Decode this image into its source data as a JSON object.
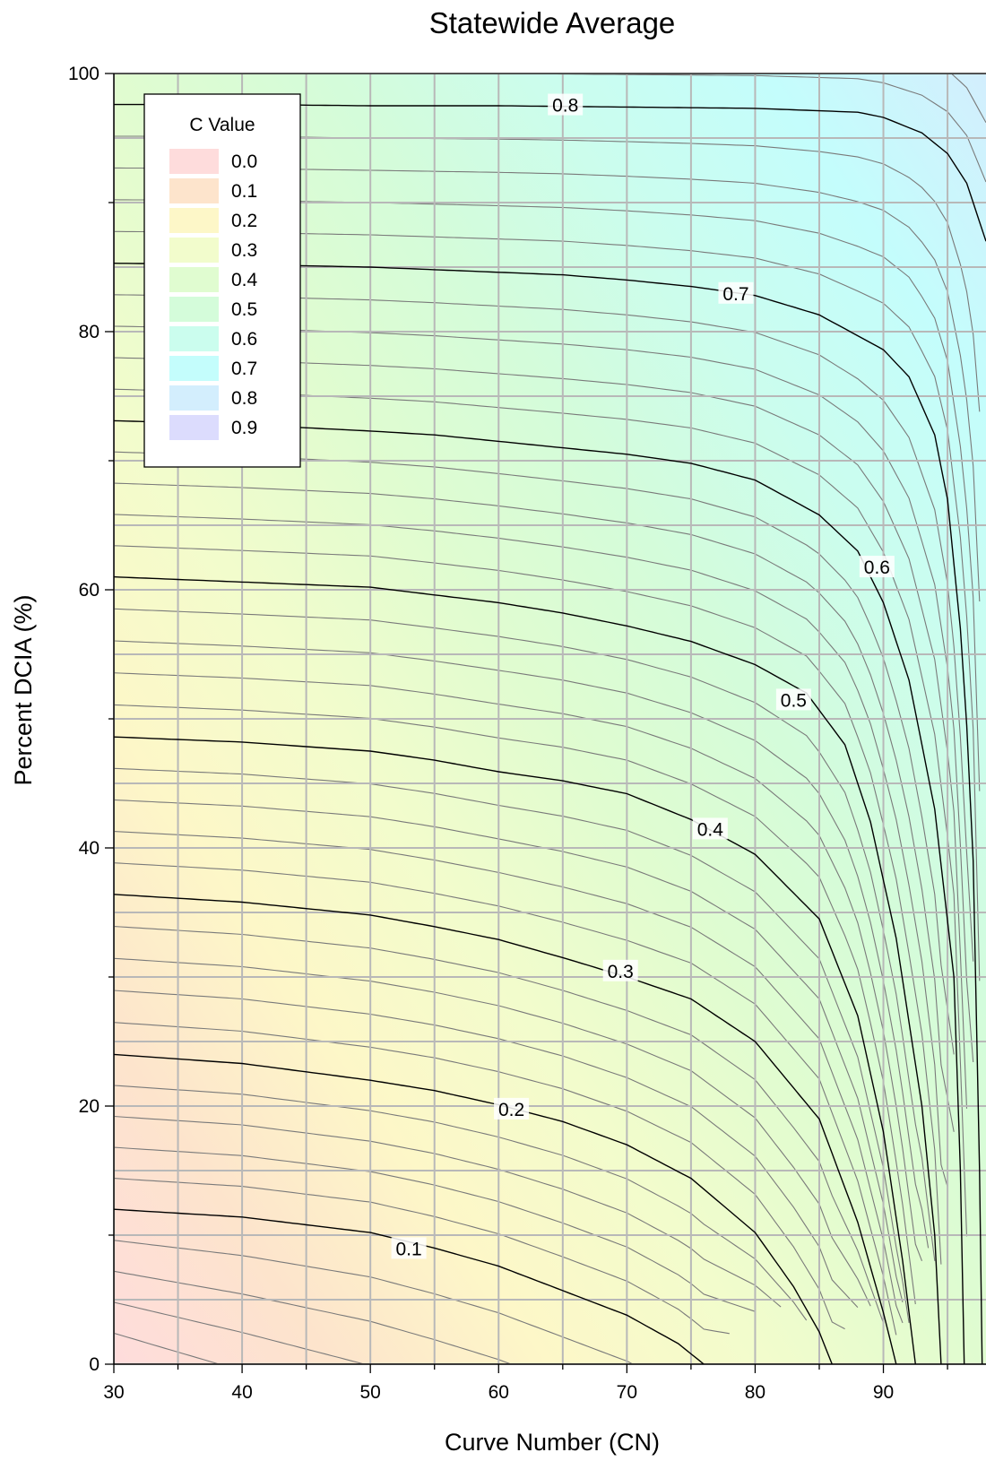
{
  "chart_data": {
    "type": "contour",
    "title": "Statewide Average",
    "xlabel": "Curve Number (CN)",
    "ylabel": "Percent DCIA (%)",
    "xlim": [
      30,
      98
    ],
    "ylim": [
      0,
      100
    ],
    "x_ticks": [
      30,
      40,
      50,
      60,
      70,
      80,
      90
    ],
    "y_ticks": [
      0,
      20,
      40,
      60,
      80,
      100
    ],
    "grid": true,
    "legend": {
      "title": "C Value",
      "placement": "top-left",
      "items": [
        {
          "label": "0.0",
          "color": "#fedcdc"
        },
        {
          "label": "0.1",
          "color": "#fde4cc"
        },
        {
          "label": "0.2",
          "color": "#fdf7c8"
        },
        {
          "label": "0.3",
          "color": "#f2fccc"
        },
        {
          "label": "0.4",
          "color": "#e0fcd0"
        },
        {
          "label": "0.5",
          "color": "#d4fcda"
        },
        {
          "label": "0.6",
          "color": "#cbfdee"
        },
        {
          "label": "0.7",
          "color": "#c4fdfc"
        },
        {
          "label": "0.8",
          "color": "#d3eefd"
        },
        {
          "label": "0.9",
          "color": "#dcdcfd"
        }
      ]
    },
    "contour_interval": 0.02,
    "major_contours": [
      {
        "level": 0.1,
        "label": "0.1",
        "label_at": [
          53,
          9
        ],
        "points": [
          [
            30,
            12.0
          ],
          [
            40,
            11.4
          ],
          [
            50,
            10.2
          ],
          [
            55,
            9.0
          ],
          [
            60,
            7.6
          ],
          [
            65,
            5.7
          ],
          [
            70,
            3.8
          ],
          [
            74,
            1.6
          ],
          [
            76,
            0
          ]
        ]
      },
      {
        "level": 0.2,
        "label": "0.2",
        "label_at": [
          61,
          19.8
        ],
        "points": [
          [
            30,
            24.0
          ],
          [
            40,
            23.3
          ],
          [
            50,
            22.0
          ],
          [
            55,
            21.2
          ],
          [
            60,
            20.1
          ],
          [
            65,
            18.8
          ],
          [
            70,
            17.0
          ],
          [
            75,
            14.4
          ],
          [
            80,
            10.2
          ],
          [
            83,
            6.0
          ],
          [
            85,
            2.5
          ],
          [
            86,
            0
          ]
        ]
      },
      {
        "level": 0.3,
        "label": "0.3",
        "label_at": [
          69.5,
          30.5
        ],
        "points": [
          [
            30,
            36.4
          ],
          [
            40,
            35.8
          ],
          [
            50,
            34.8
          ],
          [
            55,
            33.9
          ],
          [
            60,
            32.9
          ],
          [
            65,
            31.5
          ],
          [
            70,
            30.0
          ],
          [
            75,
            28.3
          ],
          [
            80,
            25.0
          ],
          [
            85,
            19.0
          ],
          [
            88,
            11.0
          ],
          [
            90,
            4.0
          ],
          [
            91,
            0
          ]
        ]
      },
      {
        "level": 0.4,
        "label": "0.4",
        "label_at": [
          76.5,
          41.5
        ],
        "points": [
          [
            30,
            48.6
          ],
          [
            40,
            48.2
          ],
          [
            50,
            47.5
          ],
          [
            55,
            46.8
          ],
          [
            60,
            45.9
          ],
          [
            65,
            45.2
          ],
          [
            70,
            44.2
          ],
          [
            75,
            42.2
          ],
          [
            80,
            39.5
          ],
          [
            85,
            34.5
          ],
          [
            88,
            27.0
          ],
          [
            90,
            18.0
          ],
          [
            91.5,
            8.0
          ],
          [
            92.5,
            0
          ]
        ]
      },
      {
        "level": 0.5,
        "label": "0.5",
        "label_at": [
          83,
          51.5
        ],
        "points": [
          [
            30,
            61.0
          ],
          [
            40,
            60.6
          ],
          [
            50,
            60.2
          ],
          [
            55,
            59.6
          ],
          [
            60,
            59.0
          ],
          [
            65,
            58.2
          ],
          [
            70,
            57.2
          ],
          [
            75,
            56.0
          ],
          [
            80,
            54.2
          ],
          [
            84,
            52.0
          ],
          [
            87,
            48.0
          ],
          [
            89,
            42.0
          ],
          [
            91,
            33.0
          ],
          [
            93,
            20.0
          ],
          [
            94,
            10.0
          ],
          [
            94.5,
            0
          ]
        ]
      },
      {
        "level": 0.6,
        "label": "0.6",
        "label_at": [
          89.5,
          61.8
        ],
        "points": [
          [
            30,
            73.1
          ],
          [
            40,
            72.8
          ],
          [
            50,
            72.3
          ],
          [
            55,
            72.0
          ],
          [
            60,
            71.5
          ],
          [
            65,
            71.0
          ],
          [
            70,
            70.5
          ],
          [
            75,
            69.8
          ],
          [
            80,
            68.5
          ],
          [
            85,
            65.8
          ],
          [
            88,
            63.0
          ],
          [
            90,
            59.0
          ],
          [
            92,
            53.0
          ],
          [
            94,
            43.0
          ],
          [
            95.5,
            30.0
          ],
          [
            96,
            15.0
          ],
          [
            96.3,
            0
          ]
        ]
      },
      {
        "level": 0.7,
        "label": "0.7",
        "label_at": [
          78.5,
          83
        ],
        "points": [
          [
            30,
            85.3
          ],
          [
            40,
            85.2
          ],
          [
            50,
            85.0
          ],
          [
            55,
            84.8
          ],
          [
            60,
            84.6
          ],
          [
            65,
            84.4
          ],
          [
            70,
            84.0
          ],
          [
            75,
            83.5
          ],
          [
            80,
            82.8
          ],
          [
            85,
            81.3
          ],
          [
            90,
            78.6
          ],
          [
            92,
            76.5
          ],
          [
            94,
            72.0
          ],
          [
            95,
            67.0
          ],
          [
            96,
            57.0
          ],
          [
            96.8,
            45.0
          ],
          [
            97.3,
            30.0
          ],
          [
            97.7,
            0
          ]
        ]
      },
      {
        "level": 0.8,
        "label": "0.8",
        "label_at": [
          65.2,
          97.6
        ],
        "points": [
          [
            30,
            97.6
          ],
          [
            40,
            97.6
          ],
          [
            50,
            97.5
          ],
          [
            60,
            97.5
          ],
          [
            70,
            97.4
          ],
          [
            80,
            97.3
          ],
          [
            88,
            97.0
          ],
          [
            90,
            96.6
          ],
          [
            93,
            95.4
          ],
          [
            95,
            93.8
          ],
          [
            96.5,
            91.5
          ],
          [
            98,
            87.0
          ]
        ]
      }
    ]
  }
}
